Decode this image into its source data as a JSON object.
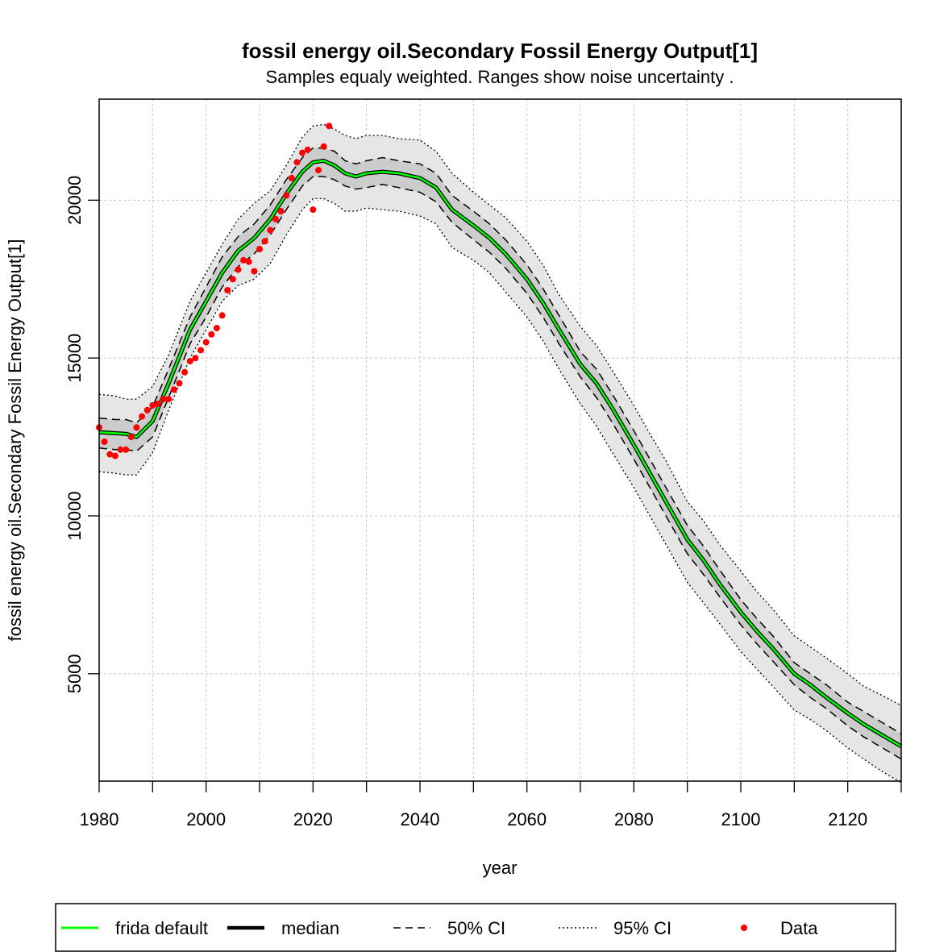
{
  "chart_data": {
    "type": "line",
    "title": "fossil energy oil.Secondary Fossil Energy Output[1]",
    "subtitle": "Samples equaly weighted. Ranges show  noise uncertainty .",
    "xlabel": "year",
    "ylabel": "fossil energy oil.Secondary Fossil Energy Output[1]",
    "xlim": [
      1980,
      2130
    ],
    "ylim": [
      1600,
      23200
    ],
    "x_ticks": [
      1980,
      2000,
      2020,
      2040,
      2060,
      2080,
      2100,
      2120
    ],
    "y_ticks": [
      5000,
      10000,
      15000,
      20000
    ],
    "grid": true,
    "legend_position": "bottom",
    "legend": [
      {
        "label": "frida default",
        "style": "solid",
        "color": "#00ff00"
      },
      {
        "label": "median",
        "style": "solid-thick",
        "color": "#000000"
      },
      {
        "label": "50% CI",
        "style": "dashed",
        "color": "#000000"
      },
      {
        "label": "95% CI",
        "style": "dotted",
        "color": "#000000"
      },
      {
        "label": "Data",
        "style": "point",
        "color": "#ff0000"
      }
    ],
    "colors": {
      "frida_default": "#00ff00",
      "median": "#000000",
      "band95": "#e6e6e6",
      "band50": "#cccccc",
      "data": "#ff0000",
      "grid": "#c8c8c8"
    },
    "x": [
      1980,
      1983,
      1985,
      1987,
      1990,
      1993,
      1997,
      2000,
      2003,
      2006,
      2009,
      2012,
      2015,
      2018,
      2020,
      2022,
      2024,
      2026,
      2028,
      2030,
      2033,
      2036,
      2040,
      2043,
      2046,
      2050,
      2053,
      2056,
      2060,
      2063,
      2066,
      2070,
      2073,
      2076,
      2080,
      2083,
      2086,
      2090,
      2093,
      2096,
      2100,
      2103,
      2106,
      2110,
      2113,
      2116,
      2120,
      2123,
      2126,
      2130
    ],
    "series": [
      {
        "name": "frida default",
        "values": [
          12650,
          12620,
          12600,
          12500,
          13000,
          14200,
          15900,
          16800,
          17700,
          18400,
          18800,
          19400,
          20200,
          20900,
          21200,
          21250,
          21100,
          20850,
          20750,
          20850,
          20900,
          20850,
          20700,
          20400,
          19700,
          19200,
          18800,
          18300,
          17500,
          16750,
          15900,
          14800,
          14200,
          13400,
          12250,
          11350,
          10450,
          9250,
          8600,
          7850,
          6950,
          6350,
          5800,
          5000,
          4650,
          4250,
          3750,
          3400,
          3100,
          2700
        ]
      },
      {
        "name": "median",
        "values": [
          12650,
          12620,
          12600,
          12500,
          13000,
          14200,
          15900,
          16800,
          17700,
          18400,
          18800,
          19400,
          20200,
          20900,
          21200,
          21250,
          21100,
          20850,
          20750,
          20850,
          20900,
          20850,
          20700,
          20400,
          19700,
          19200,
          18800,
          18300,
          17500,
          16750,
          15900,
          14800,
          14200,
          13400,
          12250,
          11350,
          10450,
          9250,
          8600,
          7850,
          6950,
          6350,
          5800,
          5000,
          4650,
          4250,
          3750,
          3400,
          3100,
          2700
        ]
      },
      {
        "name": "50% CI",
        "lower": [
          12150,
          12100,
          12100,
          12050,
          12500,
          13750,
          15450,
          16300,
          17250,
          17900,
          18300,
          18900,
          19700,
          20450,
          20750,
          20750,
          20650,
          20450,
          20350,
          20400,
          20500,
          20400,
          20250,
          19950,
          19300,
          18750,
          18350,
          17850,
          17050,
          16300,
          15450,
          14400,
          13750,
          12950,
          11800,
          10900,
          10000,
          8800,
          8150,
          7450,
          6550,
          5950,
          5400,
          4650,
          4250,
          3900,
          3350,
          3000,
          2700,
          2300
        ],
        "upper": [
          13100,
          13050,
          13050,
          12950,
          13450,
          14650,
          16300,
          17250,
          18200,
          18850,
          19250,
          19850,
          20650,
          21350,
          21650,
          21650,
          21550,
          21250,
          21150,
          21250,
          21350,
          21250,
          21150,
          20850,
          20150,
          19650,
          19250,
          18750,
          17950,
          17200,
          16350,
          15200,
          14650,
          13850,
          12700,
          11800,
          10900,
          9700,
          9050,
          8300,
          7350,
          6750,
          6200,
          5350,
          5000,
          4650,
          4100,
          3800,
          3500,
          3100
        ]
      },
      {
        "name": "95% CI",
        "lower": [
          11400,
          11350,
          11300,
          11300,
          12000,
          13350,
          15000,
          15900,
          16800,
          17300,
          17500,
          18000,
          18900,
          19700,
          20050,
          20050,
          19900,
          19650,
          19650,
          19750,
          19700,
          19650,
          19500,
          19250,
          18500,
          18100,
          17700,
          17100,
          16300,
          15550,
          14650,
          13550,
          12850,
          12000,
          10900,
          10000,
          9100,
          7900,
          7250,
          6600,
          5700,
          5150,
          4600,
          3850,
          3550,
          3200,
          2650,
          2300,
          1950,
          1550
        ],
        "upper": [
          13850,
          13800,
          13700,
          13700,
          14100,
          15100,
          16800,
          17700,
          18600,
          19400,
          19900,
          20300,
          21100,
          22000,
          22350,
          22400,
          22250,
          22050,
          21950,
          22050,
          22050,
          21950,
          21900,
          21550,
          20850,
          20250,
          19850,
          19450,
          18700,
          17950,
          17000,
          16000,
          15400,
          14600,
          13500,
          12600,
          11750,
          10450,
          9850,
          9100,
          8250,
          7600,
          7050,
          6200,
          5850,
          5500,
          5000,
          4600,
          4350,
          4000
        ]
      },
      {
        "name": "Data",
        "x": [
          1980,
          1981,
          1982,
          1983,
          1984,
          1985,
          1986,
          1987,
          1988,
          1989,
          1990,
          1991,
          1992,
          1993,
          1994,
          1995,
          1996,
          1997,
          1998,
          1999,
          2000,
          2001,
          2002,
          2003,
          2004,
          2005,
          2006,
          2007,
          2008,
          2009,
          2010,
          2011,
          2012,
          2013,
          2014,
          2015,
          2016,
          2017,
          2018,
          2019,
          2020,
          2021,
          2022,
          2023
        ],
        "values": [
          12800,
          12350,
          11950,
          11900,
          12100,
          12100,
          12500,
          12800,
          13150,
          13350,
          13500,
          13550,
          13700,
          13700,
          14000,
          14200,
          14550,
          14900,
          15000,
          15250,
          15500,
          15750,
          15950,
          16350,
          17150,
          17500,
          17800,
          18100,
          18050,
          17750,
          18450,
          18700,
          19050,
          19400,
          19650,
          20150,
          20700,
          21200,
          21500,
          21600,
          19700,
          20950,
          21700,
          22350
        ]
      }
    ]
  }
}
